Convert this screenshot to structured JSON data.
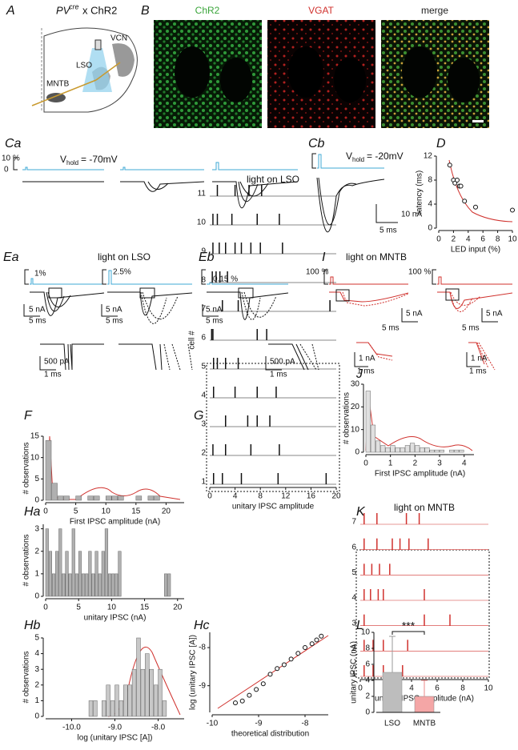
{
  "figure": {
    "letters": [
      "A",
      "B",
      "Ca",
      "Cb",
      "D",
      "Ea",
      "Eb",
      "I",
      "F",
      "G",
      "Ha",
      "Hb",
      "Hc",
      "J",
      "K",
      "L"
    ],
    "A": {
      "pv": "PV",
      "sup": "cre",
      "rest": "x ChR2",
      "vcn": "VCN",
      "lso": "LSO",
      "mntb": "MNTB"
    },
    "B": {
      "labels": [
        "ChR2",
        "VGAT",
        "merge"
      ]
    },
    "C": {
      "pct": "10 %",
      "zero": "0",
      "v_a": "V",
      "sub_a": "hold",
      "eq_a": "= -70mV",
      "v_b": "V",
      "sub_b": "hold",
      "eq_b": "= -20mV",
      "scale_y": "10 nA",
      "scale_x": "5 ms"
    },
    "E": {
      "title": "light on LSO",
      "pcts": [
        "1%",
        "2.5%",
        "0.15 %"
      ],
      "scale_y": [
        "5 nA",
        "5 nA",
        "5 nA"
      ],
      "scale_x": [
        "5 ms",
        "5 ms",
        "5 ms"
      ],
      "inset_y": [
        "500 pA",
        "500 pA"
      ],
      "inset_x": [
        "1 ms",
        "1 ms"
      ]
    },
    "I": {
      "title": "light on MNTB",
      "pcts": [
        "100 %",
        "100 %"
      ],
      "scale_y": [
        "5 nA",
        "5 nA"
      ],
      "scale_x": [
        "5 ms",
        "5 ms"
      ],
      "inset_y": [
        "1 nA",
        "1 nA"
      ],
      "inset_x": [
        "1 ms",
        "1 ms"
      ]
    }
  },
  "chart_data": [
    {
      "type": "scatter",
      "x": [
        1.5,
        2,
        2.2,
        2.5,
        2.8,
        3,
        3.5,
        5,
        10
      ],
      "values": [
        10.5,
        8,
        7.5,
        8,
        7,
        7,
        4.5,
        3.5,
        3
      ],
      "xlim": [
        0,
        10
      ],
      "ylim": [
        0,
        12
      ],
      "xticks": [
        0,
        2,
        4,
        6,
        8,
        10
      ],
      "yticks": [
        0,
        4,
        8,
        12
      ],
      "xlabel": "LED input (%)",
      "ylabel": "latency (ms)",
      "color": "#ffffff"
    },
    {
      "type": "histogram",
      "bins": [
        0,
        1,
        2,
        3,
        4,
        5,
        6,
        7,
        8,
        9,
        10,
        11,
        12,
        13,
        14,
        15,
        16,
        17,
        18,
        19,
        20
      ],
      "values": [
        14,
        4,
        1,
        1,
        0,
        1,
        0,
        1,
        1,
        0,
        1,
        1,
        1,
        0,
        0,
        1,
        0,
        1,
        1,
        0
      ],
      "xlim": [
        0,
        23
      ],
      "ylim": [
        0,
        15
      ],
      "xticks": [
        0,
        5,
        10,
        15,
        20
      ],
      "yticks": [
        0,
        5,
        10,
        15
      ],
      "xlabel": "First IPSC amplitude (nA)",
      "ylabel": "# observations",
      "color": "#b0b0b0"
    },
    {
      "type": "histogram",
      "bins": [
        0,
        0.5,
        1,
        1.5,
        2,
        2.5,
        3,
        3.5,
        4,
        4.5,
        5,
        5.5,
        6,
        6.5,
        7,
        7.5,
        8,
        8.5,
        9,
        9.5,
        10,
        10.5,
        11,
        11.5,
        12,
        12.5,
        13,
        13.5,
        14,
        14.5,
        15,
        15.5,
        16,
        16.5,
        17,
        17.5,
        18,
        18.5,
        19,
        19.5,
        20
      ],
      "values": [
        3,
        2,
        1,
        2,
        3,
        1,
        2,
        1,
        3,
        1,
        2,
        1,
        1,
        2,
        1,
        2,
        1,
        2,
        3,
        1,
        1,
        1,
        2,
        0,
        0,
        0,
        0,
        0,
        0,
        0,
        0,
        0,
        0,
        0,
        0,
        0,
        1,
        1,
        0,
        0
      ],
      "xlim": [
        0,
        21
      ],
      "ylim": [
        0,
        3.2
      ],
      "xticks": [
        0,
        5,
        10,
        15,
        20
      ],
      "yticks": [
        0,
        1,
        2,
        3
      ],
      "xlabel": "unitary IPSC (nA)",
      "ylabel": "# observations",
      "color": "#b0b0b0"
    },
    {
      "type": "histogram",
      "bins": [
        -9.6,
        -9.5,
        -9.4,
        -9.3,
        -9.2,
        -9.1,
        -9.0,
        -8.9,
        -8.8,
        -8.7,
        -8.6,
        -8.5,
        -8.4,
        -8.3,
        -8.2,
        -8.1,
        -8.0,
        -7.9,
        -7.8
      ],
      "values": [
        1,
        1,
        0,
        1,
        2,
        1,
        2,
        1,
        2,
        2,
        3,
        5,
        3,
        4,
        3,
        2,
        3,
        1
      ],
      "xlim": [
        -10.6,
        -7.4
      ],
      "ylim": [
        0,
        5
      ],
      "xticks": [
        {
          "value": -10,
          "label": "-10.0"
        },
        {
          "value": -9,
          "label": "-9.0"
        },
        {
          "value": -8,
          "label": "-8.0"
        }
      ],
      "yticks": [
        0,
        1,
        2,
        3,
        4,
        5
      ],
      "xlabel": "log (unitary IPSC [A])",
      "ylabel": "# observations",
      "color": "#c8c8c8"
    },
    {
      "type": "raster",
      "title": "light on LSO",
      "xlim": [
        0,
        20
      ],
      "xticks": [
        0,
        4,
        8,
        12,
        16,
        20
      ],
      "xlabel": "unitary IPSC amplitude",
      "ylabel": "cell #",
      "color": "#111111",
      "series": [
        {
          "name": "11",
          "values": [
            1.2,
            4,
            6.2,
            8.2
          ]
        },
        {
          "name": "10",
          "values": [
            0.5,
            1.2,
            3.5,
            7.5,
            11
          ]
        },
        {
          "name": "9",
          "values": [
            0.5,
            1.5,
            2.5,
            4,
            5,
            6.5,
            8,
            11.5
          ]
        },
        {
          "name": "8",
          "values": [
            0.4,
            1,
            1.6,
            2.8
          ]
        },
        {
          "name": "7",
          "values": [
            2,
            4.5,
            19
          ]
        },
        {
          "name": "6",
          "values": [
            0.3,
            0.5,
            7.5,
            9
          ]
        },
        {
          "name": "5",
          "values": [
            0.6,
            1.2,
            2.5,
            4.5
          ]
        },
        {
          "name": "4",
          "values": [
            0.6,
            4,
            7.5,
            10.5
          ]
        },
        {
          "name": "3",
          "values": [
            2.5,
            6,
            7.5,
            9.5
          ]
        },
        {
          "name": "2",
          "values": [
            0.5,
            2.5,
            6.5,
            11
          ]
        },
        {
          "name": "1",
          "values": [
            0.6,
            2,
            5,
            10.8,
            18.4
          ]
        }
      ]
    },
    {
      "type": "scatter",
      "x": [
        -9.5,
        -9.35,
        -9.2,
        -9.05,
        -8.9,
        -8.75,
        -8.6,
        -8.45,
        -8.3,
        -8.15,
        -8,
        -7.85,
        -7.75,
        -7.65
      ],
      "values": [
        -9.45,
        -9.4,
        -9.25,
        -9.1,
        -8.95,
        -8.7,
        -8.55,
        -8.45,
        -8.3,
        -8.15,
        -8,
        -7.9,
        -7.8,
        -7.7
      ],
      "xlim": [
        -10,
        -7.5
      ],
      "ylim": [
        -9.7,
        -7.6
      ],
      "xticks": [
        -10,
        -9,
        -8
      ],
      "yticks": [
        -9,
        -8
      ],
      "xlabel": "theoretical distribution",
      "ylabel": "log (unitary IPSC [A])",
      "color": "#ffffff"
    },
    {
      "type": "histogram",
      "bins": [
        0,
        0.2,
        0.4,
        0.6,
        0.8,
        1,
        1.2,
        1.4,
        1.6,
        1.8,
        2,
        2.2,
        2.4,
        2.6,
        2.8,
        3,
        3.2,
        3.4,
        3.6,
        3.8,
        4,
        4.2
      ],
      "values": [
        27,
        12,
        5,
        3,
        2,
        3,
        2,
        2,
        3,
        4,
        3,
        2,
        2,
        1,
        1,
        1,
        0,
        1,
        1,
        1,
        0
      ],
      "xlim": [
        0,
        4.4
      ],
      "ylim": [
        0,
        30
      ],
      "xticks": [
        0,
        1,
        2,
        3,
        4
      ],
      "yticks": [
        0,
        10,
        20,
        30
      ],
      "xlabel": "First IPSC amplitude (nA)",
      "ylabel": "# observations",
      "color": "#e0e0e0"
    },
    {
      "type": "raster",
      "title": "light on MNTB",
      "xlim": [
        0,
        10
      ],
      "xticks": [
        0,
        2,
        4,
        6,
        8,
        10
      ],
      "xlabel": "unitary IPSC amplitude (nA)",
      "color": "#d0312d",
      "series": [
        {
          "name": "7",
          "values": [
            0.3,
            1.3,
            3.6,
            4.6
          ]
        },
        {
          "name": "6",
          "values": [
            0.3,
            1.3,
            2.5,
            3.1,
            3.8,
            5.3
          ]
        },
        {
          "name": "5",
          "values": [
            0.3,
            0.9,
            1.5,
            2.3
          ]
        },
        {
          "name": "4",
          "values": [
            0.3,
            0.8,
            1.4,
            1.8,
            5
          ]
        },
        {
          "name": "3",
          "values": [
            0.3,
            5,
            7
          ]
        },
        {
          "name": "2",
          "values": [
            0.3,
            1,
            1.8,
            3.7
          ]
        },
        {
          "name": "1",
          "values": [
            0.3,
            1,
            1.8,
            3.3
          ]
        }
      ]
    },
    {
      "type": "bar",
      "categories": [
        "LSO",
        "MNTB"
      ],
      "values": [
        5,
        2
      ],
      "errors": [
        4.5,
        2
      ],
      "colors": [
        "#bdbdbd",
        "#f4a6a6"
      ],
      "ylim": [
        0,
        10
      ],
      "yticks": [
        0,
        2,
        4,
        6,
        8,
        10
      ],
      "ylabel": "unitary IPSC (nA)",
      "annotation": "***"
    }
  ]
}
